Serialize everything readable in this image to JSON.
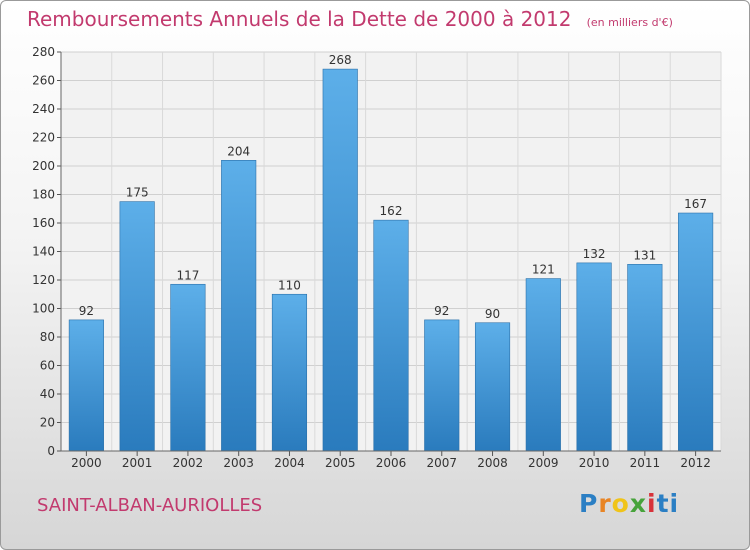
{
  "header": {
    "title": "Remboursements Annuels de la Dette de 2000 à 2012",
    "subtitle": "(en milliers d'€)"
  },
  "footer": {
    "commune": "SAINT-ALBAN-AURIOLLES",
    "logo": "Proxiti"
  },
  "colors": {
    "title": "#c23a6e",
    "bar_top": "#5dafe9",
    "bar_bottom": "#2a7bbd"
  },
  "chart_data": {
    "type": "bar",
    "categories": [
      "2000",
      "2001",
      "2002",
      "2003",
      "2004",
      "2005",
      "2006",
      "2007",
      "2008",
      "2009",
      "2010",
      "2011",
      "2012"
    ],
    "values": [
      92,
      175,
      117,
      204,
      110,
      268,
      162,
      92,
      90,
      121,
      132,
      131,
      167
    ],
    "ylim": [
      0,
      280
    ],
    "yticks": [
      0,
      20,
      40,
      60,
      80,
      100,
      120,
      140,
      160,
      180,
      200,
      220,
      240,
      260,
      280
    ],
    "grid": true
  }
}
